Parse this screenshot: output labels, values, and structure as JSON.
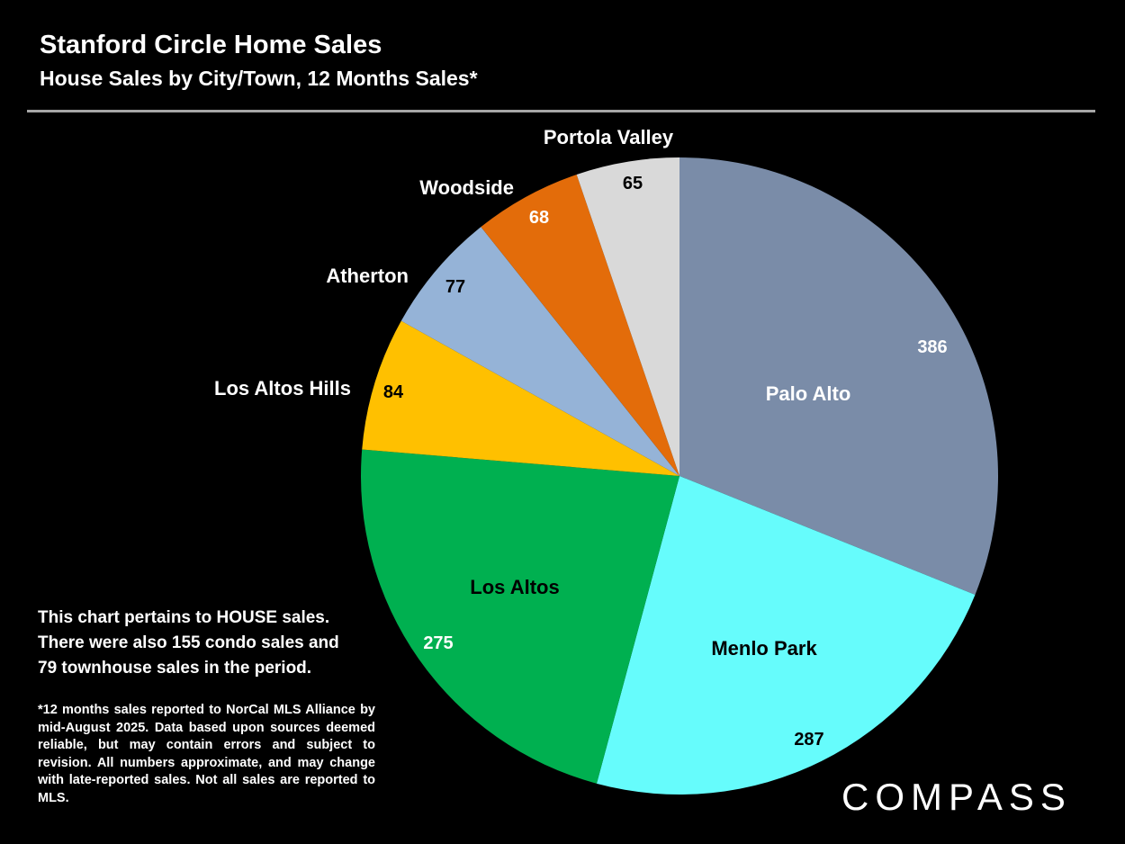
{
  "header": {
    "title": "Stanford Circle Home Sales",
    "subtitle": "House Sales by City/Town, 12 Months Sales*"
  },
  "chart_data": {
    "type": "pie",
    "title": "Stanford Circle Home Sales",
    "subtitle": "House Sales by City/Town, 12 Months Sales*",
    "legend": "none",
    "slices": [
      {
        "label": "Palo Alto",
        "value": 386,
        "value_label": "386",
        "color": "#7a8ca8"
      },
      {
        "label": "Menlo Park",
        "value": 287,
        "value_label": "287",
        "color": "#66fcfc"
      },
      {
        "label": "Los Altos",
        "value": 275,
        "value_label": "275",
        "color": "#00b050"
      },
      {
        "label": "Los Altos Hills",
        "value": 84,
        "value_label": "84",
        "color": "#ffc000"
      },
      {
        "label": "Atherton",
        "value": 77,
        "value_label": "77",
        "color": "#95b3d7"
      },
      {
        "label": "Woodside",
        "value": 68,
        "value_label": "68",
        "color": "#e36c0a"
      },
      {
        "label": "Portola Valley",
        "value": 65,
        "value_label": "65",
        "color": "#d9d9d9"
      }
    ]
  },
  "note": {
    "text": "This chart pertains to HOUSE sales. There were also 155 condo sales and 79 townhouse sales in the period."
  },
  "footnote": {
    "text": "*12 months sales reported to NorCal MLS Alliance by mid-August 2025. Data based upon sources deemed reliable, but may contain errors and subject to revision. All numbers approximate, and may change with late-reported sales. Not all sales are reported to MLS."
  },
  "brand": {
    "logo_text": "COMPASS"
  }
}
